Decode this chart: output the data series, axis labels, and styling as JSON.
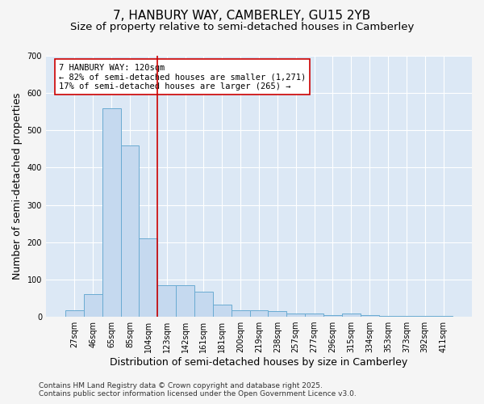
{
  "title_line1": "7, HANBURY WAY, CAMBERLEY, GU15 2YB",
  "title_line2": "Size of property relative to semi-detached houses in Camberley",
  "xlabel": "Distribution of semi-detached houses by size in Camberley",
  "ylabel": "Number of semi-detached properties",
  "categories": [
    "27sqm",
    "46sqm",
    "65sqm",
    "85sqm",
    "104sqm",
    "123sqm",
    "142sqm",
    "161sqm",
    "181sqm",
    "200sqm",
    "219sqm",
    "238sqm",
    "257sqm",
    "277sqm",
    "296sqm",
    "315sqm",
    "334sqm",
    "353sqm",
    "373sqm",
    "392sqm",
    "411sqm"
  ],
  "values": [
    18,
    60,
    560,
    460,
    210,
    85,
    85,
    68,
    33,
    18,
    18,
    15,
    8,
    8,
    4,
    8,
    5,
    2,
    2,
    2,
    3
  ],
  "bar_color": "#c5d9ef",
  "bar_edge_color": "#6aabd2",
  "marker_index": 5,
  "marker_color": "#cc0000",
  "annotation_line1": "7 HANBURY WAY: 120sqm",
  "annotation_line2": "← 82% of semi-detached houses are smaller (1,271)",
  "annotation_line3": "17% of semi-detached houses are larger (265) →",
  "ylim": [
    0,
    700
  ],
  "yticks": [
    0,
    100,
    200,
    300,
    400,
    500,
    600,
    700
  ],
  "figure_bg_color": "#f5f5f5",
  "plot_bg_color": "#dce8f5",
  "grid_color": "#ffffff",
  "footer_line1": "Contains HM Land Registry data © Crown copyright and database right 2025.",
  "footer_line2": "Contains public sector information licensed under the Open Government Licence v3.0.",
  "title_fontsize": 11,
  "subtitle_fontsize": 9.5,
  "axis_label_fontsize": 9,
  "tick_fontsize": 7,
  "annotation_fontsize": 7.5,
  "footer_fontsize": 6.5
}
